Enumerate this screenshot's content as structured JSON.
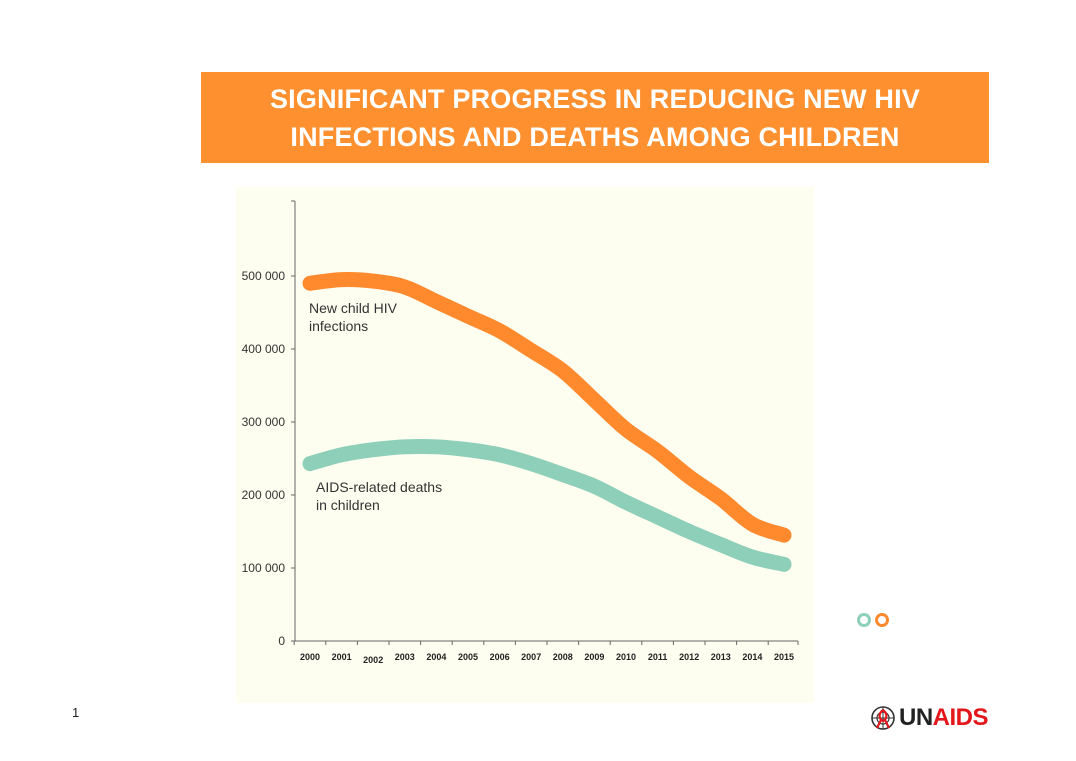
{
  "header": {
    "title": "SIGNIFICANT PROGRESS IN REDUCING NEW HIV INFECTIONS AND DEATHS AMONG CHILDREN"
  },
  "chart_data": {
    "type": "line",
    "x": [
      "2000",
      "2001",
      "2002",
      "2003",
      "2004",
      "2005",
      "2006",
      "2007",
      "2008",
      "2009",
      "2010",
      "2011",
      "2012",
      "2013",
      "2014",
      "2015"
    ],
    "ylim": [
      0,
      600000
    ],
    "yticks": [
      0,
      100000,
      200000,
      300000,
      400000,
      500000
    ],
    "ytick_labels": [
      "0",
      "100 000",
      "200 000",
      "300 000",
      "400 000",
      "500 000"
    ],
    "grid": false,
    "series": [
      {
        "name": "New child HIV infections",
        "label_lines": [
          "New child HIV",
          "infections"
        ],
        "color": "#ff8a2e",
        "values": [
          490000,
          495000,
          493000,
          485000,
          465000,
          445000,
          425000,
          398000,
          370000,
          330000,
          290000,
          260000,
          225000,
          195000,
          160000,
          145000
        ]
      },
      {
        "name": "AIDS-related deaths in children",
        "label_lines": [
          "AIDS-related deaths",
          "in children"
        ],
        "color": "#8ecfb9",
        "values": [
          243000,
          255000,
          262000,
          266000,
          266000,
          262000,
          255000,
          243000,
          228000,
          212000,
          190000,
          170000,
          150000,
          132000,
          115000,
          105000
        ]
      }
    ]
  },
  "page": {
    "number": "1"
  },
  "legend_dots": [
    {
      "color": "#8ecfb9"
    },
    {
      "color": "#ff8a2e"
    }
  ],
  "logo": {
    "prefix": "UN",
    "suffix": "AIDS",
    "emblem": "un-emblem-icon",
    "ribbon_color": "#e3161b"
  }
}
